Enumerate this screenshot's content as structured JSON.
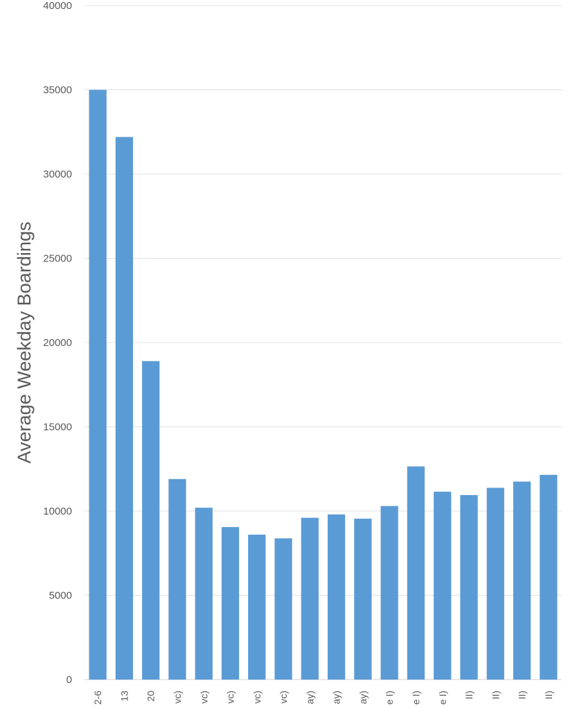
{
  "chart_data": {
    "type": "bar",
    "title": "",
    "xlabel": "",
    "ylabel": "Average Weekday Boardings",
    "ylim": [
      0,
      40000
    ],
    "yticks": [
      0,
      5000,
      10000,
      15000,
      20000,
      25000,
      30000,
      35000,
      40000
    ],
    "grid": true,
    "legend": "none",
    "colors": {
      "bar": "#5b9bd5",
      "grid": "#e0e0e0",
      "text": "#595959"
    },
    "categories": [
      "2-6",
      "13",
      "20",
      "vc)",
      "vc)",
      "vc)",
      "vc)",
      "vc)",
      "ay)",
      "ay)",
      "ay)",
      "e I)",
      "e I)",
      "e I)",
      "II)",
      "II)",
      "II)",
      "II)"
    ],
    "values": [
      35000,
      32200,
      18900,
      11900,
      10200,
      9050,
      8600,
      8380,
      9600,
      9800,
      9550,
      10300,
      12650,
      11150,
      10950,
      11380,
      11750,
      12150
    ]
  }
}
